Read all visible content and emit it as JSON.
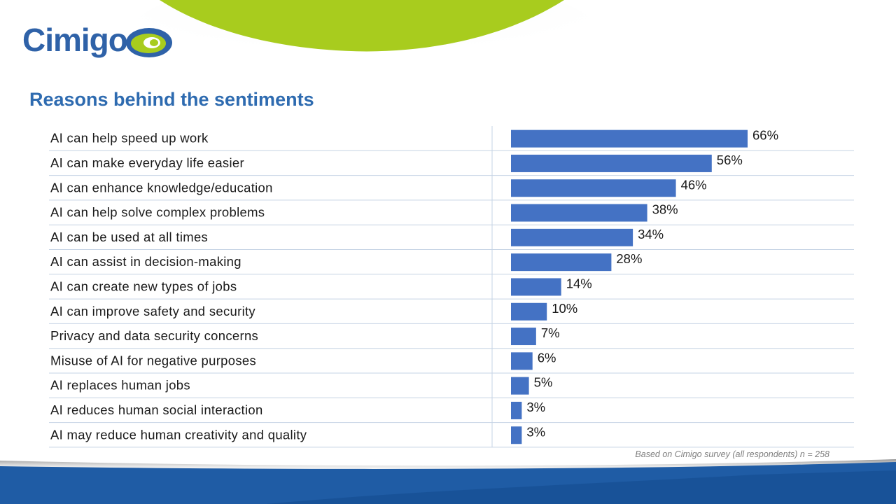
{
  "brand": {
    "logo_text": "Cimigo",
    "logo_color": "#2f62a8",
    "accent_green": "#a8cc1e",
    "footer_blue": "#1f5ca5"
  },
  "page": {
    "title": "Reasons behind the sentiments",
    "title_color": "#2e6bb0"
  },
  "chart_data": {
    "type": "bar",
    "orientation": "horizontal",
    "categories": [
      "AI can help speed up work",
      "AI can make everyday life easier",
      "AI can enhance knowledge/education",
      "AI can help solve complex problems",
      "AI can be used at all times",
      "AI can assist in decision-making",
      "AI can create new types of jobs",
      "AI can improve safety and security",
      "Privacy and data security concerns",
      "Misuse of AI for negative purposes",
      "AI replaces human jobs",
      "AI reduces human social interaction",
      "AI may reduce human creativity and quality"
    ],
    "values": [
      66,
      56,
      46,
      38,
      34,
      28,
      14,
      10,
      7,
      6,
      5,
      3,
      3
    ],
    "data_labels": [
      "66%",
      "56%",
      "46%",
      "38%",
      "34%",
      "28%",
      "14%",
      "10%",
      "7%",
      "6%",
      "5%",
      "3%",
      "3%"
    ],
    "bar_color": "#4472c4",
    "grid_color": "#c5d3e4",
    "xlim": [
      0,
      100
    ],
    "legend": "none"
  },
  "footnote": "Based on Cimigo survey (all respondents) n = 258"
}
